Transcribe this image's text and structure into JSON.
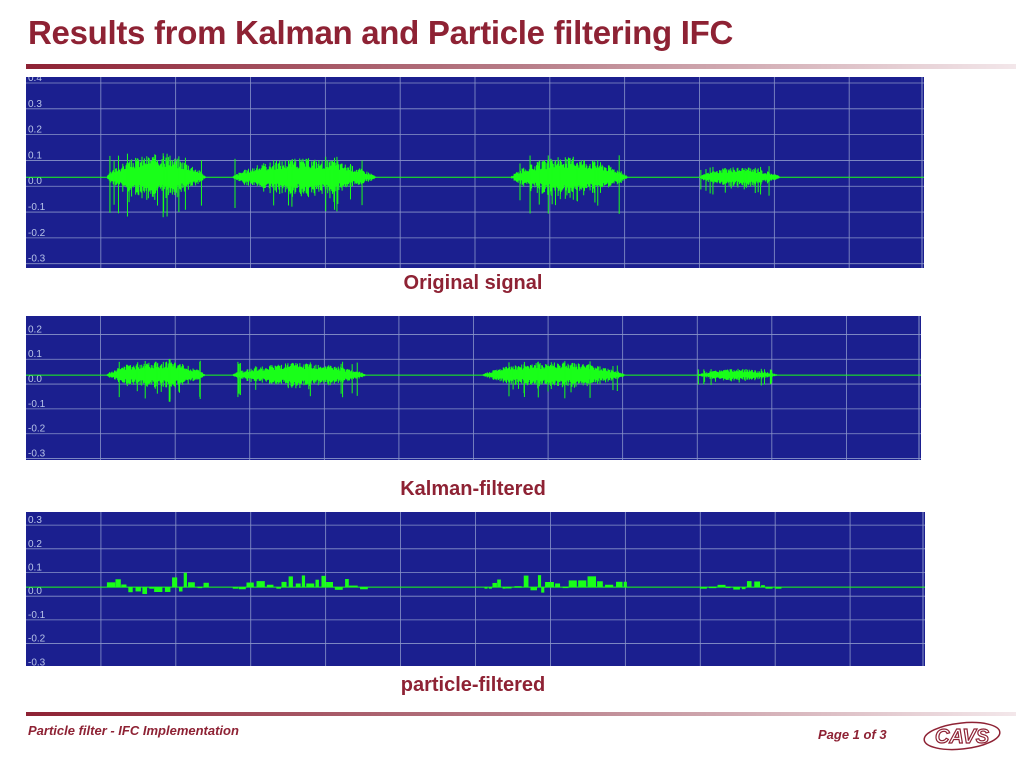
{
  "title": "Results from Kalman and Particle filtering IFC",
  "footer": {
    "left_text": "Particle filter - IFC Implementation",
    "page_text": "Page 1 of 3",
    "logo_text": "CAVS"
  },
  "colors": {
    "accent": "#8e2234",
    "plot_bg": "#1b1f8f",
    "grid": "#8a95c9",
    "signal": "#19ff19",
    "tick_label": "#b8c4e8"
  },
  "chart_data": [
    {
      "type": "line",
      "caption": "Original signal",
      "ylim": [
        -0.34,
        0.4
      ],
      "yticks": [
        "0.4",
        "0.3",
        "0.2",
        "0.1",
        "0.0",
        "-0.1",
        "-0.2",
        "-0.3"
      ],
      "ytick_values": [
        0.4,
        0.3,
        0.2,
        0.1,
        0.0,
        -0.1,
        -0.2,
        -0.3
      ],
      "grid": true,
      "series": [
        {
          "bursts": [
            {
              "start": 0.09,
              "end": 0.2,
              "amp": 0.09
            },
            {
              "start": 0.23,
              "end": 0.39,
              "amp": 0.075
            },
            {
              "start": 0.54,
              "end": 0.67,
              "amp": 0.08
            },
            {
              "start": 0.75,
              "end": 0.84,
              "amp": 0.04
            }
          ]
        }
      ]
    },
    {
      "type": "line",
      "caption": "Kalman-filtered",
      "ylim": [
        -0.33,
        0.25
      ],
      "yticks": [
        "0.2",
        "0.1",
        "0.0",
        "-0.1",
        "-0.2",
        "-0.3"
      ],
      "ytick_values": [
        0.2,
        0.1,
        0.0,
        -0.1,
        -0.2,
        -0.3
      ],
      "grid": true,
      "series": [
        {
          "bursts": [
            {
              "start": 0.09,
              "end": 0.2,
              "amp": 0.06
            },
            {
              "start": 0.23,
              "end": 0.38,
              "amp": 0.05
            },
            {
              "start": 0.51,
              "end": 0.67,
              "amp": 0.055
            },
            {
              "start": 0.75,
              "end": 0.84,
              "amp": 0.025
            }
          ]
        }
      ]
    },
    {
      "type": "line",
      "caption": "particle-filtered",
      "ylim": [
        -0.32,
        0.33
      ],
      "yticks": [
        "0.3",
        "0.2",
        "0.1",
        "0.0",
        "-0.1",
        "-0.2",
        "-0.3"
      ],
      "ytick_values": [
        0.3,
        0.2,
        0.1,
        0.0,
        -0.1,
        -0.2,
        -0.3
      ],
      "grid": true,
      "series": [
        {
          "bursts": [
            {
              "start": 0.09,
              "end": 0.2,
              "amp": 0.045,
              "step": true
            },
            {
              "start": 0.23,
              "end": 0.38,
              "amp": 0.03,
              "step": true
            },
            {
              "start": 0.51,
              "end": 0.67,
              "amp": 0.04,
              "step": true
            },
            {
              "start": 0.75,
              "end": 0.84,
              "amp": 0.015,
              "step": true
            }
          ]
        }
      ]
    }
  ]
}
